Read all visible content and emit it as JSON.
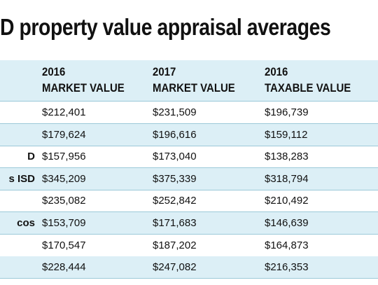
{
  "header": {
    "title": "D property value appraisal averages"
  },
  "table": {
    "columns": [
      {
        "year": "2016",
        "label": "MARKET VALUE"
      },
      {
        "year": "2017",
        "label": "MARKET VALUE"
      },
      {
        "year": "2016",
        "label": "TAXABLE VALUE"
      }
    ],
    "rows": [
      {
        "values": [
          "$212,401",
          "$231,509",
          "$196,739"
        ]
      },
      {
        "values": [
          "$179,624",
          "$196,616",
          "$159,112"
        ]
      },
      {
        "label": "D",
        "values": [
          "$157,956",
          "$173,040",
          "$138,283"
        ]
      },
      {
        "label": "s ISD",
        "values": [
          "$345,209",
          "$375,339",
          "$318,794"
        ]
      },
      {
        "values": [
          "$235,082",
          "$252,842",
          "$210,492"
        ]
      },
      {
        "label": "cos",
        "values": [
          "$153,709",
          "$171,683",
          "$146,639"
        ]
      },
      {
        "values": [
          "$170,547",
          "$187,202",
          "$164,873"
        ]
      },
      {
        "values": [
          "$228,444",
          "$247,082",
          "$216,353"
        ]
      }
    ]
  }
}
